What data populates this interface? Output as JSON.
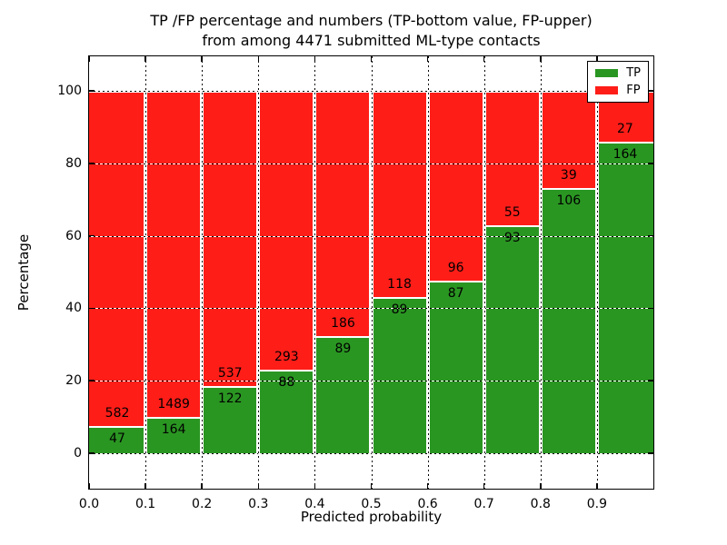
{
  "figure": {
    "title_line1": "TP /FP percentage and numbers (TP-bottom value, FP-upper)",
    "title_line2": "from among 4471 submitted ML-type contacts"
  },
  "chart_data": {
    "type": "bar",
    "stacked": true,
    "normalized_to_percent": true,
    "title": "TP /FP percentage and numbers (TP-bottom value, FP-upper) from among 4471 submitted ML-type contacts",
    "xlabel": "Predicted probability",
    "ylabel": "Percentage",
    "total_contacts": 4471,
    "categories": [
      0.0,
      0.1,
      0.2,
      0.3,
      0.4,
      0.5,
      0.6,
      0.7,
      0.8,
      0.9
    ],
    "bin_width": 0.1,
    "series": [
      {
        "name": "TP",
        "color": "#2a9622",
        "values": [
          47,
          164,
          122,
          88,
          89,
          89,
          87,
          93,
          106,
          164
        ]
      },
      {
        "name": "FP",
        "color": "#ff1d18",
        "values": [
          582,
          1489,
          537,
          293,
          186,
          118,
          96,
          55,
          39,
          27
        ]
      }
    ],
    "value_label_layout": {
      "tp": "bottom of boundary",
      "fp": "upper of boundary"
    },
    "axes": {
      "xlim": [
        0.0,
        1.0
      ],
      "ylim": [
        -9.75,
        109.5
      ],
      "xtick_labels": [
        "0.0",
        "0.1",
        "0.2",
        "0.3",
        "0.4",
        "0.5",
        "0.6",
        "0.7",
        "0.8",
        "0.9"
      ],
      "ytick_values": [
        0,
        20,
        40,
        60,
        80,
        100
      ],
      "ytick_labels": [
        "0",
        "20",
        "40",
        "60",
        "80",
        "100"
      ],
      "grid": "dotted",
      "legend_position": "upper right"
    },
    "legend": [
      {
        "label": "TP",
        "color": "#2a9622"
      },
      {
        "label": "FP",
        "color": "#ff1d18"
      }
    ]
  },
  "colors": {
    "tp_green": "#2a9622",
    "fp_red": "#ff1d18",
    "axis": "#000000",
    "background": "#ffffff"
  }
}
